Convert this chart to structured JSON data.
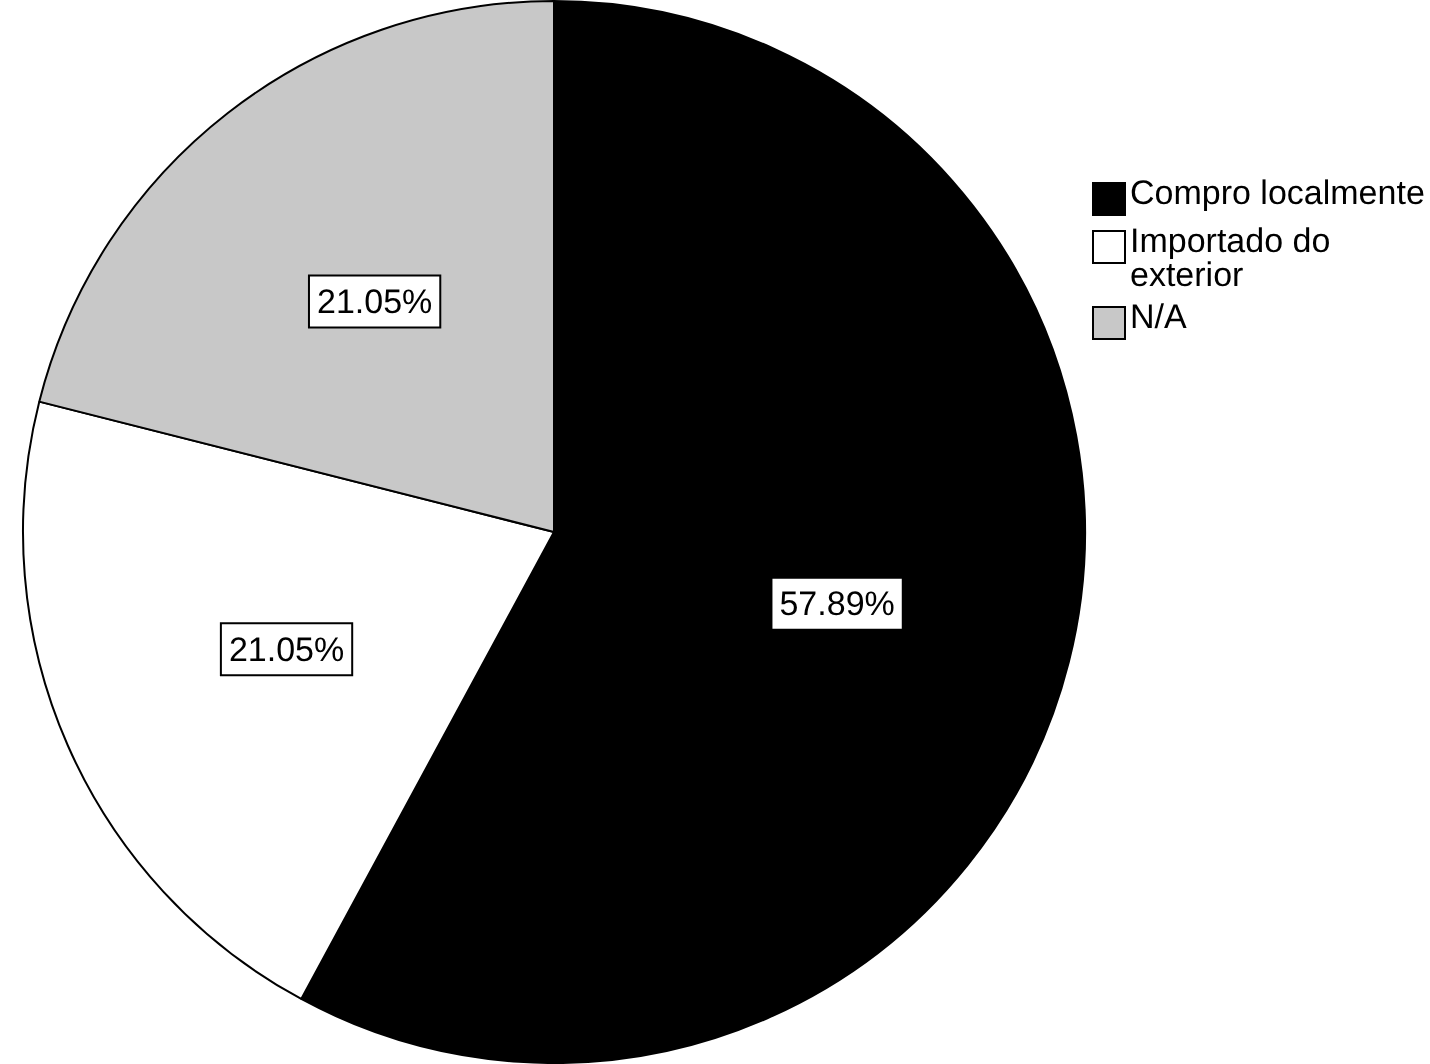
{
  "chart_data": {
    "type": "pie",
    "categories": [
      "Compro localmente",
      "Importado do exterior",
      "N/A"
    ],
    "values": [
      57.89,
      21.05,
      21.05
    ],
    "colors": [
      "#000000",
      "#ffffff",
      "#c8c8c8"
    ],
    "value_labels": [
      "57.89%",
      "21.05%",
      "21.05%"
    ],
    "legend": "right"
  }
}
